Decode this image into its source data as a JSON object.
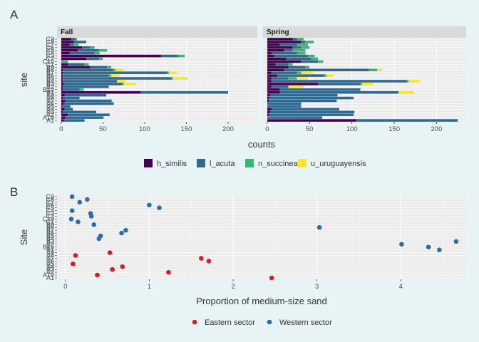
{
  "chart_data": [
    {
      "panel": "A",
      "type": "bar",
      "orientation": "horizontal",
      "stacked": true,
      "xlabel": "counts",
      "ylabel": "site",
      "xlim": [
        -5,
        235
      ],
      "xticks": [
        0,
        50,
        100,
        150,
        200
      ],
      "facets": [
        "Fall",
        "Spring"
      ],
      "categories": [
        "A1",
        "A2",
        "A3",
        "A4",
        "A5",
        "A6",
        "A7",
        "A8",
        "A9",
        "A10",
        "B1",
        "B2",
        "B3",
        "B4",
        "B5",
        "B6",
        "B7",
        "B8",
        "B9",
        "B10",
        "C1",
        "C2",
        "C3",
        "C4",
        "C5",
        "C6",
        "C7",
        "C8",
        "C9",
        "C10"
      ],
      "tick_labels": [
        "A1",
        "A10",
        "A2",
        "A3",
        "A4",
        "A5",
        "A6",
        "A7",
        "A8",
        "A9",
        "B1",
        "B10",
        "B2",
        "B3",
        "B4",
        "B5",
        "B6",
        "B7",
        "B8",
        "B9",
        "C1",
        "C10",
        "C2",
        "C3",
        "C4",
        "C5",
        "C6",
        "C7",
        "C8",
        "C9"
      ],
      "legend": [
        "h_similis",
        "l_acuta",
        "n_succinea",
        "u_uruguayensis"
      ],
      "colors": {
        "h_similis": "#440154",
        "l_acuta": "#31688e",
        "n_succinea": "#35b779",
        "u_uruguayensis": "#fde725"
      },
      "values": {
        "Fall": {
          "h_similis": [
            3,
            5,
            8,
            2,
            4,
            1,
            3,
            5,
            2,
            4,
            95,
            2,
            2,
            3,
            2,
            2,
            2,
            2,
            2,
            35,
            8,
            0,
            30,
            120,
            10,
            20,
            25,
            10,
            15,
            12
          ],
          "l_acuta": [
            25,
            45,
            50,
            40,
            10,
            10,
            60,
            55,
            20,
            50,
            105,
            20,
            55,
            70,
            65,
            130,
            55,
            125,
            60,
            20,
            20,
            0,
            15,
            20,
            30,
            25,
            10,
            5,
            15,
            5
          ],
          "n_succinea": [
            0,
            1,
            0,
            0,
            0,
            0,
            0,
            1,
            0,
            0,
            0,
            5,
            0,
            2,
            0,
            2,
            3,
            2,
            3,
            5,
            5,
            8,
            5,
            8,
            6,
            10,
            5,
            6,
            0,
            2
          ],
          "u_uruguayensis": [
            0,
            0,
            0,
            0,
            0,
            0,
            0,
            0,
            0,
            0,
            0,
            0,
            0,
            14,
            10,
            17,
            9,
            10,
            10,
            0,
            0,
            0,
            0,
            0,
            0,
            0,
            0,
            0,
            0,
            0
          ]
        },
        "Spring": {
          "h_similis": [
            105,
            0,
            2,
            3,
            5,
            0,
            0,
            2,
            2,
            3,
            15,
            15,
            5,
            60,
            5,
            5,
            12,
            5,
            20,
            25,
            10,
            40,
            22,
            8,
            5,
            20,
            30,
            15,
            40,
            30
          ],
          "l_acuta": [
            120,
            65,
            100,
            100,
            80,
            40,
            40,
            80,
            100,
            80,
            140,
            95,
            20,
            50,
            160,
            20,
            55,
            30,
            100,
            20,
            15,
            20,
            30,
            40,
            30,
            10,
            10,
            20,
            5,
            5
          ],
          "n_succinea": [
            0,
            0,
            0,
            0,
            0,
            0,
            0,
            0,
            0,
            0,
            0,
            0,
            0,
            2,
            2,
            10,
            3,
            5,
            10,
            5,
            5,
            6,
            8,
            8,
            10,
            15,
            10,
            13,
            10,
            8
          ],
          "u_uruguayensis": [
            0,
            0,
            0,
            0,
            0,
            0,
            0,
            0,
            0,
            0,
            18,
            0,
            18,
            13,
            13,
            13,
            8,
            14,
            6,
            0,
            0,
            0,
            0,
            0,
            0,
            0,
            0,
            0,
            0,
            0
          ]
        }
      }
    },
    {
      "panel": "B",
      "type": "scatter",
      "xlabel": "Proportion of medium-size sand",
      "ylabel": "Site",
      "xlim": [
        -0.1,
        4.78
      ],
      "xticks": [
        0,
        1,
        2,
        3,
        4
      ],
      "categories": [
        "A1",
        "A2",
        "A3",
        "A4",
        "A5",
        "A6",
        "A7",
        "A8",
        "A9",
        "A10",
        "B1",
        "B2",
        "B3",
        "B4",
        "B5",
        "B6",
        "B7",
        "B8",
        "B9",
        "B10",
        "C1",
        "C2",
        "C3",
        "C4",
        "C5",
        "C6",
        "C7",
        "C8",
        "C9",
        "C10"
      ],
      "tick_labels": [
        "A1",
        "A10",
        "A2",
        "A3",
        "A4",
        "A5",
        "A6",
        "A7",
        "A8",
        "A9",
        "B1",
        "B10",
        "B2",
        "B3",
        "B4",
        "B5",
        "B6",
        "B7",
        "B8",
        "B9",
        "C1",
        "C10",
        "C2",
        "C3",
        "C4",
        "C5",
        "C6",
        "C7",
        "C8",
        "C9"
      ],
      "legend": [
        "Eastern sector",
        "Western sector"
      ],
      "colors": {
        "Eastern sector": "#dc1c1c",
        "Western sector": "#2b6eaf"
      },
      "series": [
        {
          "name": "Eastern sector",
          "points": [
            {
              "site": "A1",
              "x": 2.46
            },
            {
              "site": "A2",
              "x": 0.38
            },
            {
              "site": "A3",
              "x": 1.23
            },
            {
              "site": "A4",
              "x": 0.56
            },
            {
              "site": "A5",
              "x": 0.68
            },
            {
              "site": "A6",
              "x": 0.09
            },
            {
              "site": "A7",
              "x": 1.71
            },
            {
              "site": "A8",
              "x": 1.62
            },
            {
              "site": "A9",
              "x": 0.12
            },
            {
              "site": "A10",
              "x": 0.53
            }
          ]
        },
        {
          "name": "Western sector",
          "points": [
            {
              "site": "B1",
              "x": 4.46
            },
            {
              "site": "B2",
              "x": 4.33
            },
            {
              "site": "B3",
              "x": 4.01
            },
            {
              "site": "B4",
              "x": 4.66
            },
            {
              "site": "B5",
              "x": 0.4
            },
            {
              "site": "B6",
              "x": 0.42
            },
            {
              "site": "B7",
              "x": 0.67
            },
            {
              "site": "B8",
              "x": 0.72
            },
            {
              "site": "B9",
              "x": 3.03
            },
            {
              "site": "B10",
              "x": 0.34
            },
            {
              "site": "C1",
              "x": 0.15
            },
            {
              "site": "C2",
              "x": 0.07
            },
            {
              "site": "C3",
              "x": 0.31
            },
            {
              "site": "C4",
              "x": 0.3
            },
            {
              "site": "C5",
              "x": 0.08
            },
            {
              "site": "C6",
              "x": 1.12
            },
            {
              "site": "C7",
              "x": 1.0
            },
            {
              "site": "C8",
              "x": 0.17
            },
            {
              "site": "C9",
              "x": 0.26
            },
            {
              "site": "C10",
              "x": 0.08
            }
          ]
        }
      ]
    }
  ],
  "labels": {
    "panel_a": "A",
    "panel_b": "B"
  }
}
